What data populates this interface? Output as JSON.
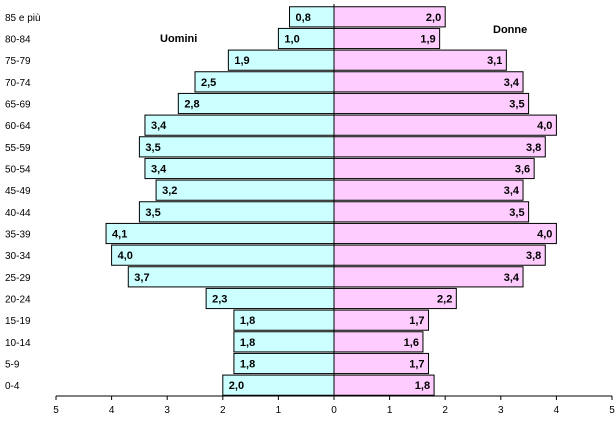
{
  "chart_data": {
    "type": "bar",
    "orientation": "horizontal-population-pyramid",
    "categories": [
      "0-4",
      "5-9",
      "10-14",
      "15-19",
      "20-24",
      "25-29",
      "30-34",
      "35-39",
      "40-44",
      "45-49",
      "50-54",
      "55-59",
      "60-64",
      "65-69",
      "70-74",
      "75-79",
      "80-84",
      "85 e più"
    ],
    "series": [
      {
        "name": "Uomini",
        "side": "left",
        "color": "#ccffff",
        "values": [
          2.0,
          1.8,
          1.8,
          1.8,
          2.3,
          3.7,
          4.0,
          4.1,
          3.5,
          3.2,
          3.4,
          3.5,
          3.4,
          2.8,
          2.5,
          1.9,
          1.0,
          0.8
        ],
        "labels": [
          "2,0",
          "1,8",
          "1,8",
          "1,8",
          "2,3",
          "3,7",
          "4,0",
          "4,1",
          "3,5",
          "3,2",
          "3,4",
          "3,5",
          "3,4",
          "2,8",
          "2,5",
          "1,9",
          "1,0",
          "0,8"
        ]
      },
      {
        "name": "Donne",
        "side": "right",
        "color": "#ffccff",
        "values": [
          1.8,
          1.7,
          1.6,
          1.7,
          2.2,
          3.4,
          3.8,
          4.0,
          3.5,
          3.4,
          3.6,
          3.8,
          4.0,
          3.5,
          3.4,
          3.1,
          1.9,
          2.0
        ],
        "labels": [
          "1,8",
          "1,7",
          "1,6",
          "1,7",
          "2,2",
          "3,4",
          "3,8",
          "4,0",
          "3,5",
          "3,4",
          "3,6",
          "3,8",
          "4,0",
          "3,5",
          "3,4",
          "3,1",
          "1,9",
          "2,0"
        ]
      }
    ],
    "x_ticks": [
      "5",
      "4",
      "3",
      "2",
      "1",
      "0",
      "1",
      "2",
      "3",
      "4",
      "5"
    ],
    "xlim": [
      -5,
      5
    ],
    "grid": false,
    "legend": "none"
  }
}
